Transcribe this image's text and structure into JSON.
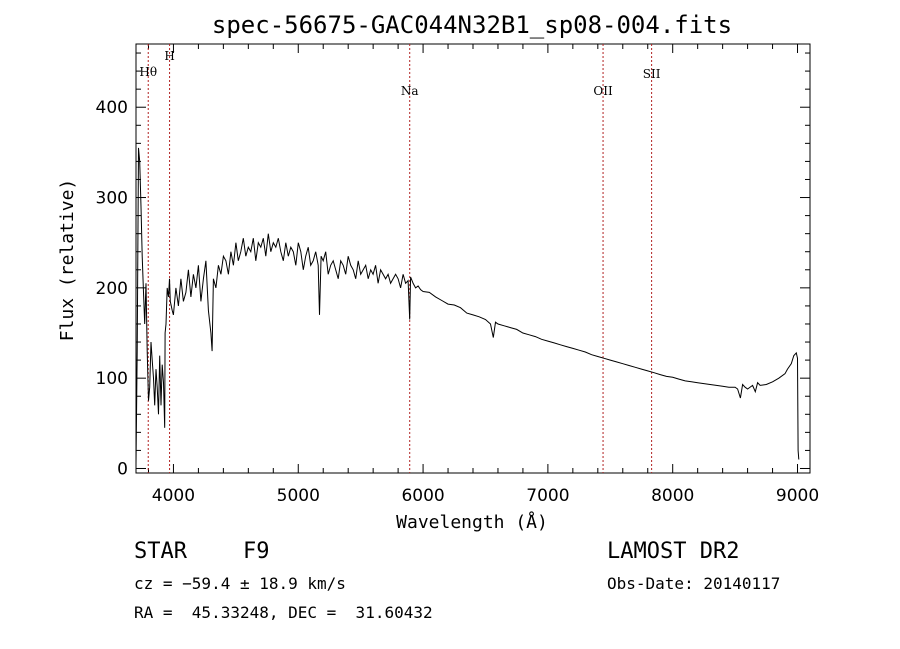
{
  "chart_data": {
    "type": "line",
    "title": "spec-56675-GAC044N32B1_sp08-004.fits",
    "xlabel": "Wavelength (Å)",
    "ylabel": "Flux (relative)",
    "xlim": [
      3700,
      9100
    ],
    "ylim": [
      -5,
      470
    ],
    "x_ticks": [
      4000,
      5000,
      6000,
      7000,
      8000,
      9000
    ],
    "y_ticks": [
      0,
      100,
      200,
      300,
      400
    ],
    "line_color": "#000000",
    "marker_color": "#b22222",
    "spectral_lines": [
      {
        "label": "Hθ",
        "x": 3798
      },
      {
        "label": "H",
        "x": 3969
      },
      {
        "label": "Na",
        "x": 5893
      },
      {
        "label": "OII",
        "x": 7442
      },
      {
        "label": "SII",
        "x": 7831
      }
    ],
    "series": [
      {
        "x": [
          3700,
          3710,
          3720,
          3730,
          3740,
          3750,
          3760,
          3770,
          3780,
          3790,
          3800,
          3810,
          3820,
          3830,
          3840,
          3850,
          3860,
          3870,
          3880,
          3890,
          3900,
          3910,
          3920,
          3930,
          3933,
          3940,
          3950,
          3960,
          3968,
          3975,
          3990,
          4000,
          4020,
          4040,
          4060,
          4080,
          4100,
          4120,
          4140,
          4160,
          4180,
          4200,
          4220,
          4240,
          4260,
          4280,
          4300,
          4310,
          4320,
          4340,
          4360,
          4380,
          4400,
          4420,
          4440,
          4460,
          4480,
          4500,
          4520,
          4540,
          4560,
          4580,
          4600,
          4620,
          4640,
          4660,
          4680,
          4700,
          4720,
          4740,
          4760,
          4780,
          4800,
          4820,
          4840,
          4860,
          4880,
          4900,
          4920,
          4940,
          4960,
          4980,
          5000,
          5020,
          5040,
          5060,
          5080,
          5100,
          5120,
          5140,
          5160,
          5170,
          5183,
          5200,
          5220,
          5240,
          5260,
          5280,
          5300,
          5320,
          5340,
          5360,
          5380,
          5400,
          5420,
          5440,
          5460,
          5480,
          5500,
          5520,
          5540,
          5560,
          5580,
          5600,
          5620,
          5640,
          5660,
          5680,
          5700,
          5720,
          5740,
          5760,
          5780,
          5800,
          5820,
          5840,
          5860,
          5880,
          5893,
          5900,
          5920,
          5940,
          5960,
          5980,
          6000,
          6050,
          6100,
          6150,
          6200,
          6250,
          6300,
          6350,
          6400,
          6450,
          6500,
          6540,
          6563,
          6580,
          6600,
          6650,
          6700,
          6750,
          6800,
          6850,
          6900,
          6950,
          7000,
          7050,
          7100,
          7150,
          7200,
          7250,
          7300,
          7350,
          7400,
          7450,
          7500,
          7550,
          7600,
          7650,
          7700,
          7750,
          7800,
          7850,
          7900,
          7950,
          8000,
          8050,
          8100,
          8150,
          8200,
          8250,
          8300,
          8350,
          8400,
          8450,
          8500,
          8520,
          8542,
          8560,
          8580,
          8600,
          8640,
          8662,
          8680,
          8700,
          8750,
          8800,
          8850,
          8900,
          8920,
          8950,
          8970,
          8990,
          9000,
          9005,
          9010
        ],
        "y": [
          5,
          130,
          355,
          340,
          290,
          235,
          195,
          160,
          205,
          130,
          75,
          90,
          140,
          120,
          100,
          70,
          110,
          90,
          60,
          125,
          70,
          115,
          95,
          45,
          150,
          160,
          200,
          190,
          210,
          185,
          175,
          170,
          200,
          180,
          210,
          185,
          195,
          220,
          190,
          215,
          200,
          225,
          185,
          210,
          230,
          175,
          150,
          130,
          210,
          200,
          225,
          215,
          235,
          230,
          215,
          240,
          225,
          250,
          230,
          240,
          255,
          235,
          245,
          240,
          255,
          230,
          250,
          245,
          255,
          235,
          260,
          240,
          250,
          245,
          255,
          240,
          230,
          250,
          235,
          245,
          240,
          225,
          250,
          240,
          220,
          235,
          245,
          225,
          230,
          240,
          225,
          170,
          235,
          230,
          240,
          215,
          225,
          230,
          220,
          210,
          230,
          225,
          215,
          235,
          225,
          220,
          210,
          230,
          215,
          220,
          225,
          210,
          220,
          215,
          225,
          205,
          220,
          215,
          210,
          215,
          205,
          210,
          215,
          210,
          200,
          215,
          205,
          208,
          165,
          212,
          205,
          200,
          202,
          198,
          196,
          195,
          190,
          186,
          182,
          181,
          178,
          172,
          170,
          168,
          165,
          160,
          145,
          162,
          160,
          158,
          156,
          154,
          150,
          148,
          146,
          143,
          141,
          139,
          137,
          135,
          133,
          131,
          129,
          126,
          124,
          122,
          120,
          118,
          116,
          114,
          112,
          110,
          108,
          106,
          104,
          102,
          101,
          99,
          97,
          96,
          95,
          94,
          93,
          92,
          91,
          90,
          90,
          88,
          78,
          93,
          90,
          88,
          92,
          85,
          95,
          92,
          93,
          96,
          100,
          105,
          110,
          116,
          125,
          128,
          122,
          20,
          10
        ]
      }
    ]
  },
  "info": {
    "object_class": "STAR",
    "subclass": "F9",
    "survey": "LAMOST DR2",
    "cz": "cz = −59.4 ± 18.9 km/s",
    "obs_date": "Obs-Date: 20140117",
    "coords": "RA =  45.33248, DEC =  31.60432"
  }
}
